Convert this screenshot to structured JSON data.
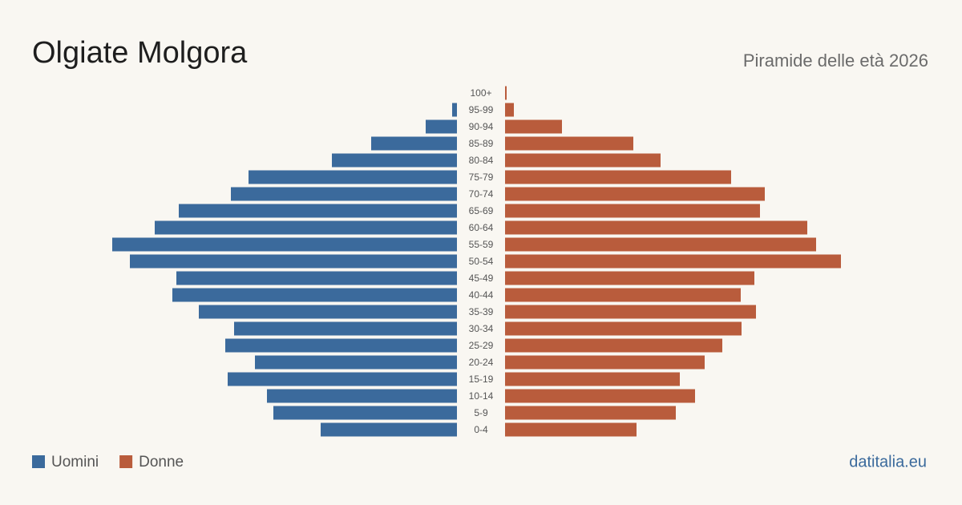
{
  "chart_data": {
    "type": "pyramid",
    "title": "Olgiate Molgora",
    "subtitle": "Piramide delle età 2026",
    "source": "datitalia.eu",
    "categories": [
      "100+",
      "95-99",
      "90-94",
      "85-89",
      "80-84",
      "75-79",
      "70-74",
      "65-69",
      "60-64",
      "55-59",
      "50-54",
      "45-49",
      "40-44",
      "35-39",
      "30-34",
      "25-29",
      "20-24",
      "15-19",
      "10-14",
      "5-9",
      "0-4"
    ],
    "series": [
      {
        "name": "Uomini",
        "color": "#3b6a9c",
        "values": [
          0,
          6,
          39,
          107,
          156,
          260,
          282,
          347,
          377,
          430,
          408,
          350,
          355,
          322,
          278,
          289,
          252,
          286,
          237,
          229,
          170
        ]
      },
      {
        "name": "Donne",
        "color": "#b95c3c",
        "values": [
          2,
          11,
          71,
          160,
          194,
          282,
          324,
          318,
          377,
          388,
          419,
          311,
          294,
          313,
          295,
          271,
          249,
          218,
          237,
          213,
          164
        ]
      }
    ],
    "xlim": [
      0,
      440
    ]
  }
}
